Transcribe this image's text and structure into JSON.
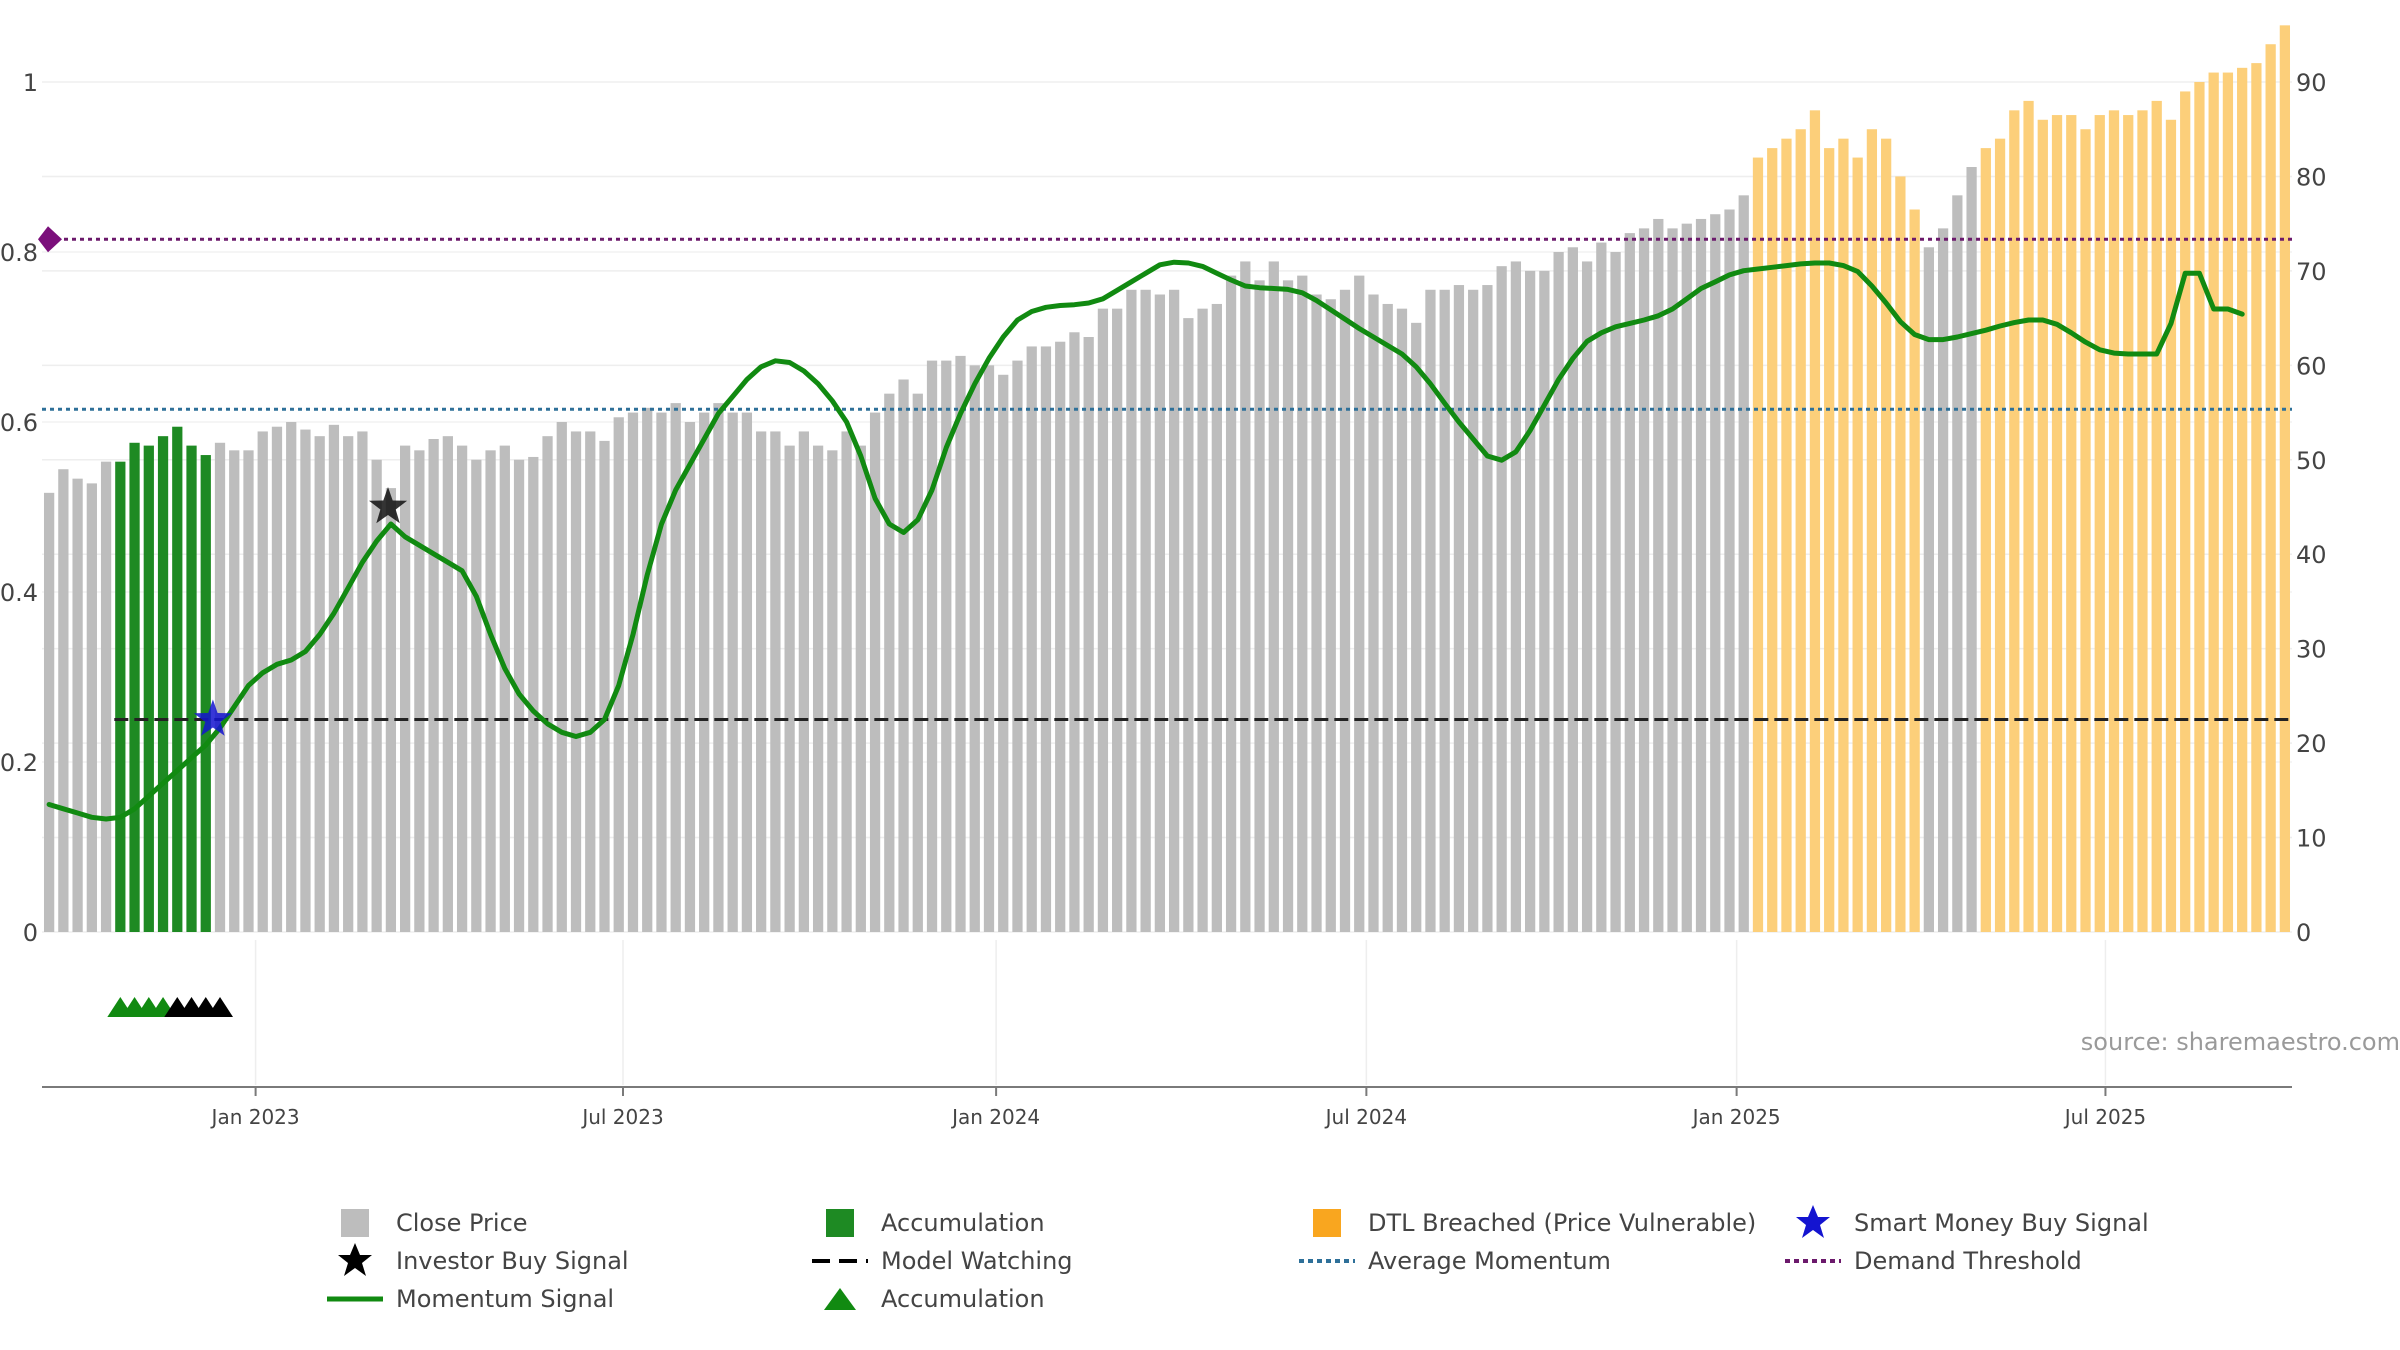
{
  "chart_data": {
    "type": "bar",
    "title": "",
    "left_axis": {
      "range": [
        0,
        1
      ],
      "ticks": [
        "0",
        "0.2",
        "0.4",
        "0.6",
        "0.8",
        "1"
      ]
    },
    "right_axis": {
      "range": [
        0,
        90
      ],
      "ticks": [
        "0",
        "10",
        "20",
        "30",
        "40",
        "50",
        "60",
        "70",
        "80",
        "90"
      ]
    },
    "x_ticks": [
      "Jan 2023",
      "Jul 2023",
      "Jan 2024",
      "Jul 2024",
      "Jan 2025",
      "Jul 2025"
    ],
    "x_tick_weeks": [
      14.5,
      40.3,
      66.5,
      92.5,
      118.5,
      144.4
    ],
    "close_price": [
      46.5,
      49.0,
      48.0,
      47.5,
      49.8,
      49.8,
      51.8,
      51.5,
      52.5,
      53.5,
      51.5,
      50.5,
      51.8,
      51.0,
      51.0,
      53.0,
      53.5,
      54.0,
      53.2,
      52.5,
      53.7,
      52.5,
      53.0,
      50.0,
      47.0,
      51.5,
      51.0,
      52.2,
      52.5,
      51.5,
      50.0,
      51.0,
      51.5,
      50.0,
      50.3,
      52.5,
      54.0,
      53.0,
      53.0,
      52.0,
      54.5,
      55.0,
      55.5,
      55.0,
      56.0,
      54.0,
      55.0,
      56.0,
      55.0,
      55.0,
      53.0,
      53.0,
      51.5,
      53.0,
      51.5,
      51.0,
      53.0,
      51.5,
      55.0,
      57.0,
      58.5,
      57.0,
      60.5,
      60.5,
      61.0,
      60.0,
      60.0,
      59.0,
      60.5,
      62.0,
      62.0,
      62.5,
      63.5,
      63.0,
      66.0,
      66.0,
      68.0,
      68.0,
      67.5,
      68.0,
      65.0,
      66.0,
      66.5,
      69.5,
      71.0,
      69.0,
      71.0,
      69.0,
      69.5,
      67.5,
      67.0,
      68.0,
      69.5,
      67.5,
      66.5,
      66.0,
      64.5,
      68.0,
      68.0,
      68.5,
      68.0,
      68.5,
      70.5,
      71.0,
      70.0,
      70.0,
      72.0,
      72.5,
      71.0,
      73.0,
      72.0,
      74.0,
      74.5,
      75.5,
      74.5,
      75.0,
      75.5,
      76.0,
      76.5,
      78.0,
      82.0,
      83.0,
      84.0,
      85.0,
      87.0,
      83.0,
      84.0,
      82.0,
      85.0,
      84.0,
      80.0,
      76.5,
      72.5,
      74.5,
      78.0,
      81.0,
      83.0,
      84.0,
      87.0,
      88.0,
      86.0,
      86.5,
      86.5,
      85.0,
      86.5,
      87.0,
      86.5,
      87.0,
      88.0,
      86.0,
      89.0,
      90.0,
      91.0,
      91.0,
      91.5,
      92.0,
      94.0,
      96.0
    ],
    "bar_state": "aaaaagggggggaaaaaaaaaaaaaaaaaaaaaaaaaaaaaaaaaaaaaaaaaaaaaaaaaaaaaaaaaaaaaaaaaaaaaaaaaaaaaaaaaaaaaaaaaaaaaaaaaaaaaaaaaaaaooooooooooooaaaaoooooooooooooooooooooo",
    "momentum_signal": [
      0.15,
      0.145,
      0.14,
      0.135,
      0.133,
      0.135,
      0.145,
      0.16,
      0.175,
      0.19,
      0.205,
      0.22,
      0.24,
      0.265,
      0.29,
      0.305,
      0.315,
      0.32,
      0.33,
      0.35,
      0.375,
      0.405,
      0.435,
      0.46,
      0.48,
      0.465,
      0.455,
      0.445,
      0.435,
      0.425,
      0.395,
      0.35,
      0.31,
      0.28,
      0.26,
      0.245,
      0.235,
      0.23,
      0.235,
      0.25,
      0.29,
      0.35,
      0.42,
      0.48,
      0.52,
      0.55,
      0.58,
      0.61,
      0.63,
      0.65,
      0.665,
      0.672,
      0.67,
      0.66,
      0.645,
      0.625,
      0.6,
      0.56,
      0.51,
      0.48,
      0.47,
      0.485,
      0.52,
      0.57,
      0.61,
      0.645,
      0.675,
      0.7,
      0.72,
      0.73,
      0.735,
      0.737,
      0.738,
      0.74,
      0.745,
      0.755,
      0.765,
      0.775,
      0.785,
      0.788,
      0.787,
      0.783,
      0.775,
      0.767,
      0.76,
      0.758,
      0.757,
      0.756,
      0.752,
      0.743,
      0.732,
      0.721,
      0.71,
      0.7,
      0.69,
      0.68,
      0.665,
      0.645,
      0.622,
      0.6,
      0.58,
      0.56,
      0.555,
      0.565,
      0.59,
      0.62,
      0.65,
      0.675,
      0.695,
      0.705,
      0.712,
      0.716,
      0.72,
      0.725,
      0.733,
      0.745,
      0.757,
      0.765,
      0.773,
      0.778,
      0.78,
      0.782,
      0.784,
      0.786,
      0.787,
      0.787,
      0.784,
      0.777,
      0.76,
      0.74,
      0.718,
      0.703,
      0.697,
      0.697,
      0.7,
      0.704,
      0.708,
      0.713,
      0.717,
      0.72,
      0.72,
      0.715,
      0.705,
      0.694,
      0.685,
      0.681,
      0.68,
      0.68,
      0.68,
      0.716,
      0.775,
      0.775,
      0.733,
      0.733,
      0.727
    ],
    "smart_money_buy_signal": {
      "week": 11.5,
      "value": 0.25
    },
    "investor_buy_signal": {
      "week": 23.8,
      "value": 0.5
    },
    "model_watching": {
      "value": 0.25,
      "from_week": 5
    },
    "average_momentum": 0.615,
    "demand_threshold": 0.815,
    "accumulation_markers": {
      "green_weeks": [
        5,
        6,
        7,
        8
      ],
      "black_weeks": [
        9,
        10,
        11,
        12
      ]
    },
    "colors": {
      "close": "#bdbdbd",
      "accumulation": "#1e8a23",
      "dtl": "#fccf7a",
      "momentum": "#118a11",
      "model_watching": "#222222",
      "average_momentum": "#2e7099",
      "demand_threshold": "#6c1a6c",
      "smart_money": "#1414d0",
      "accumulation_marker": "#118a11"
    }
  },
  "watermark": "source: sharemaestro.com",
  "legend": [
    {
      "label": "Close Price",
      "symbol": "gray-square"
    },
    {
      "label": "Accumulation",
      "symbol": "green-square"
    },
    {
      "label": "DTL Breached (Price Vulnerable)",
      "symbol": "orange-square"
    },
    {
      "label": "Smart Money Buy Signal",
      "symbol": "blue-star"
    },
    {
      "label": "Investor Buy Signal",
      "symbol": "black-star"
    },
    {
      "label": "Model Watching",
      "symbol": "black-dash"
    },
    {
      "label": "Average Momentum",
      "symbol": "blue-dot"
    },
    {
      "label": "Demand Threshold",
      "symbol": "purple-dot"
    },
    {
      "label": "Momentum Signal",
      "symbol": "green-line"
    },
    {
      "label": "Accumulation",
      "symbol": "green-triangle"
    }
  ]
}
